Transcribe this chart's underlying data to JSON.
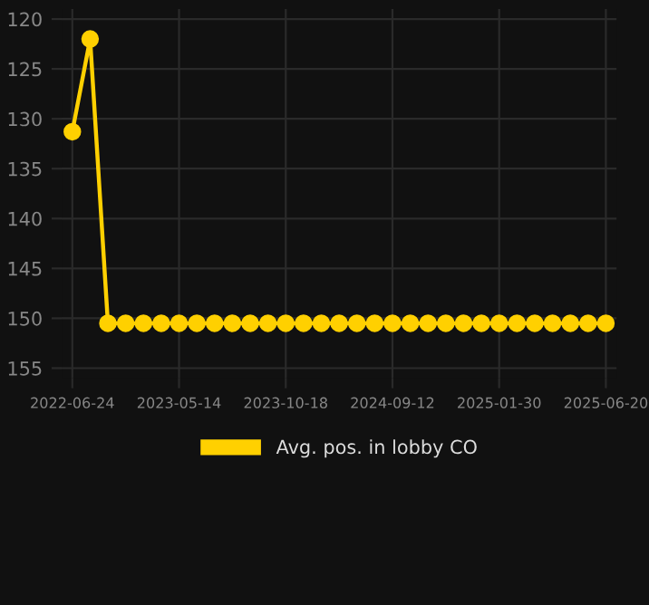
{
  "chart_data": {
    "type": "line",
    "categories": [
      "2022-06-24",
      null,
      null,
      null,
      null,
      null,
      "2023-05-14",
      null,
      null,
      null,
      null,
      null,
      "2023-10-18",
      null,
      null,
      null,
      null,
      null,
      "2024-09-12",
      null,
      null,
      null,
      null,
      null,
      "2025-01-30",
      null,
      null,
      null,
      null,
      null,
      "2025-06-20"
    ],
    "series": [
      {
        "name": "Avg. pos. in lobby CO",
        "color": "#ffd000",
        "values": [
          131.3,
          122,
          150.5,
          150.5,
          150.5,
          150.5,
          150.5,
          150.5,
          150.5,
          150.5,
          150.5,
          150.5,
          150.5,
          150.5,
          150.5,
          150.5,
          150.5,
          150.5,
          150.5,
          150.5,
          150.5,
          150.5,
          150.5,
          150.5,
          150.5,
          150.5,
          150.5,
          150.5,
          150.5,
          150.5,
          150.5
        ]
      }
    ],
    "ylim": [
      156,
      119
    ],
    "yticks": [
      120,
      125,
      130,
      135,
      140,
      145,
      150,
      155
    ],
    "grid": true,
    "legend": "bottom",
    "marker": "circle",
    "line_style": "solid"
  }
}
